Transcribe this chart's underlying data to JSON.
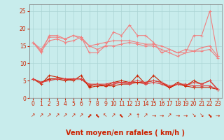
{
  "title": "",
  "xlabel": "Vent moyen/en rafales ( km/h )",
  "ylabel": "",
  "xlim": [
    -0.5,
    23.5
  ],
  "ylim": [
    0,
    27
  ],
  "yticks": [
    0,
    5,
    10,
    15,
    20,
    25
  ],
  "xticks": [
    0,
    1,
    2,
    3,
    4,
    5,
    6,
    7,
    8,
    9,
    10,
    11,
    12,
    13,
    14,
    15,
    16,
    17,
    18,
    19,
    20,
    21,
    22,
    23
  ],
  "bg_color": "#c8ecec",
  "grid_color": "#aad4d4",
  "line_color_light": "#f08080",
  "line_color_dark": "#cc2200",
  "line_color_mid": "#dd4444",
  "lines_upper": [
    [
      16.0,
      13.0,
      18.0,
      18.0,
      17.0,
      18.0,
      17.5,
      13.0,
      13.0,
      15.0,
      19.0,
      18.0,
      21.0,
      18.0,
      18.0,
      16.0,
      13.0,
      14.0,
      13.0,
      13.0,
      18.0,
      18.0,
      25.0,
      12.0
    ],
    [
      16.0,
      14.0,
      17.5,
      17.5,
      17.0,
      18.0,
      17.0,
      15.0,
      15.5,
      16.0,
      16.5,
      16.5,
      16.5,
      16.0,
      15.5,
      15.5,
      15.0,
      14.0,
      13.0,
      14.0,
      13.5,
      14.5,
      15.0,
      12.0
    ],
    [
      16.0,
      13.5,
      16.5,
      17.0,
      16.0,
      16.5,
      17.5,
      15.0,
      14.0,
      15.0,
      15.0,
      15.5,
      16.0,
      15.5,
      15.0,
      15.0,
      14.0,
      13.0,
      12.0,
      13.0,
      13.5,
      13.5,
      14.0,
      11.5
    ]
  ],
  "lines_lower": [
    [
      5.5,
      4.0,
      6.5,
      6.0,
      5.5,
      5.0,
      6.5,
      3.0,
      3.5,
      3.5,
      3.5,
      4.0,
      4.0,
      6.5,
      4.0,
      6.5,
      4.5,
      3.0,
      4.5,
      3.5,
      5.0,
      4.0,
      5.0,
      2.5
    ],
    [
      5.5,
      4.5,
      5.5,
      5.5,
      5.5,
      5.5,
      5.5,
      3.5,
      4.0,
      3.5,
      4.0,
      4.5,
      4.0,
      4.5,
      4.0,
      4.5,
      4.0,
      3.0,
      4.0,
      3.5,
      4.5,
      4.0,
      5.0,
      2.5
    ],
    [
      5.5,
      4.5,
      5.5,
      5.5,
      5.0,
      5.5,
      5.5,
      3.5,
      4.0,
      3.5,
      4.5,
      5.0,
      4.5,
      4.5,
      4.5,
      5.0,
      4.5,
      3.0,
      4.0,
      3.5,
      3.0,
      3.0,
      3.0,
      2.5
    ],
    [
      5.5,
      4.5,
      5.0,
      5.5,
      5.5,
      5.5,
      5.5,
      4.0,
      4.0,
      4.0,
      4.5,
      4.5,
      4.5,
      5.0,
      4.5,
      5.0,
      4.5,
      3.5,
      4.0,
      4.0,
      3.5,
      3.5,
      3.5,
      2.5
    ]
  ],
  "arrows": [
    "↗",
    "↗",
    "↗",
    "↗",
    "↗",
    "↗",
    "↗",
    "⬈",
    "⬉",
    "↖",
    "↗",
    "⬉",
    "↗",
    "↑",
    "↗",
    "→",
    "→",
    "↗",
    "→",
    "→",
    "↘",
    "↘",
    "⬊",
    "→"
  ],
  "arrow_fontsize": 5.5,
  "tick_fontsize": 5.5,
  "label_fontsize": 7
}
